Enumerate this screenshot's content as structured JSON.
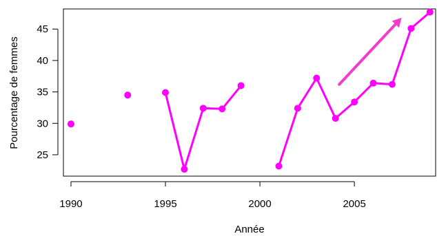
{
  "chart_data": {
    "type": "line",
    "xlabel": "Année",
    "ylabel": "Pourcentage de femmes",
    "xlim": [
      1989.6,
      2009.3
    ],
    "ylim": [
      21.6,
      48.2
    ],
    "x_ticks": [
      1990,
      1995,
      2000,
      2005
    ],
    "y_ticks": [
      25,
      30,
      35,
      40,
      45
    ],
    "grid": false,
    "series_color": "#ff00ff",
    "arrow_color": "#f23ccc",
    "points": [
      {
        "x": 1990,
        "y": 29.9
      },
      {
        "x": 1993,
        "y": 34.5
      },
      {
        "x": 1995,
        "y": 34.9
      },
      {
        "x": 1996,
        "y": 22.7
      },
      {
        "x": 1997,
        "y": 32.4
      },
      {
        "x": 1998,
        "y": 32.3
      },
      {
        "x": 1999,
        "y": 36.0
      },
      {
        "x": 2001,
        "y": 23.2
      },
      {
        "x": 2002,
        "y": 32.4
      },
      {
        "x": 2003,
        "y": 37.2
      },
      {
        "x": 2004,
        "y": 30.8
      },
      {
        "x": 2005,
        "y": 33.4
      },
      {
        "x": 2006,
        "y": 36.4
      },
      {
        "x": 2007,
        "y": 36.2
      },
      {
        "x": 2008,
        "y": 45.1
      },
      {
        "x": 2009,
        "y": 47.7
      }
    ],
    "connected_segments": [
      [
        1995,
        1999
      ],
      [
        2001,
        2009
      ]
    ],
    "trend_arrow": {
      "from": {
        "x": 2004.2,
        "y": 36.2
      },
      "to": {
        "x": 2007.5,
        "y": 46.8
      }
    }
  }
}
